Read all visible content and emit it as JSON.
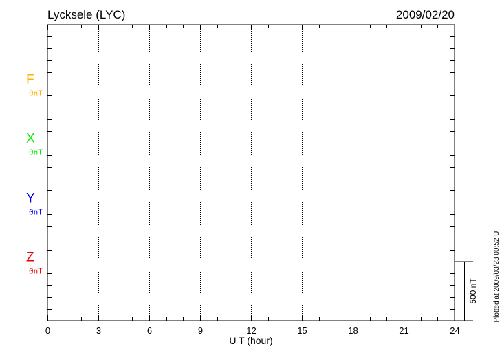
{
  "chart_data": {
    "type": "line",
    "title": "Lycksele (LYC)",
    "date": "2009/02/20",
    "xlabel": "U T (hour)",
    "xlim": [
      0,
      24
    ],
    "x_ticks": [
      "0",
      "3",
      "6",
      "9",
      "12",
      "15",
      "18",
      "21",
      "24"
    ],
    "x_minor_step_hours": 1,
    "grid": true,
    "components": [
      {
        "name": "F",
        "baseline_label": "0nT",
        "color": "#ffb000"
      },
      {
        "name": "X",
        "baseline_label": "0nT",
        "color": "#00ee00"
      },
      {
        "name": "Y",
        "baseline_label": "0nT",
        "color": "#0000ee"
      },
      {
        "name": "Z",
        "baseline_label": "0nT",
        "color": "#ee0000"
      }
    ],
    "band_height_nT": 500,
    "minor_tick_nT": 100,
    "scale_bar_label": "500 nT",
    "series": [],
    "footer": "Plotted at 2009/03/23 00:52 UT"
  }
}
